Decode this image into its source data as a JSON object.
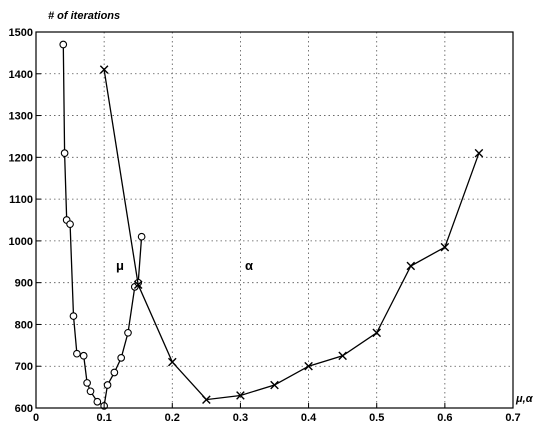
{
  "chart_data": {
    "type": "line",
    "xlabel": "μ,α",
    "ylabel": "# of iterations",
    "xlim": [
      0,
      0.7
    ],
    "ylim": [
      600,
      1500
    ],
    "xticks": [
      "0",
      "0.1",
      "0.2",
      "0.3",
      "0.4",
      "0.5",
      "0.6",
      "0.7"
    ],
    "yticks": [
      "600",
      "700",
      "800",
      "900",
      "1000",
      "1100",
      "1200",
      "1300",
      "1400",
      "1500"
    ],
    "grid": true,
    "series": [
      {
        "name": "μ",
        "marker": "o",
        "x": [
          0.04,
          0.042,
          0.045,
          0.05,
          0.055,
          0.06,
          0.07,
          0.075,
          0.08,
          0.09,
          0.1,
          0.105,
          0.115,
          0.125,
          0.135,
          0.145,
          0.15,
          0.155
        ],
        "y": [
          1470,
          1210,
          1050,
          1040,
          820,
          730,
          725,
          660,
          640,
          615,
          605,
          655,
          685,
          720,
          780,
          890,
          900,
          1010
        ]
      },
      {
        "name": "α",
        "marker": "x",
        "x": [
          0.1,
          0.15,
          0.2,
          0.25,
          0.3,
          0.35,
          0.4,
          0.45,
          0.5,
          0.55,
          0.6,
          0.65
        ],
        "y": [
          1410,
          895,
          710,
          620,
          630,
          655,
          700,
          725,
          780,
          940,
          985,
          1210
        ]
      }
    ],
    "annotations": [
      {
        "text": "μ",
        "x": 0.115,
        "y": 835
      },
      {
        "text": "α",
        "x": 0.3,
        "y": 835
      }
    ]
  }
}
